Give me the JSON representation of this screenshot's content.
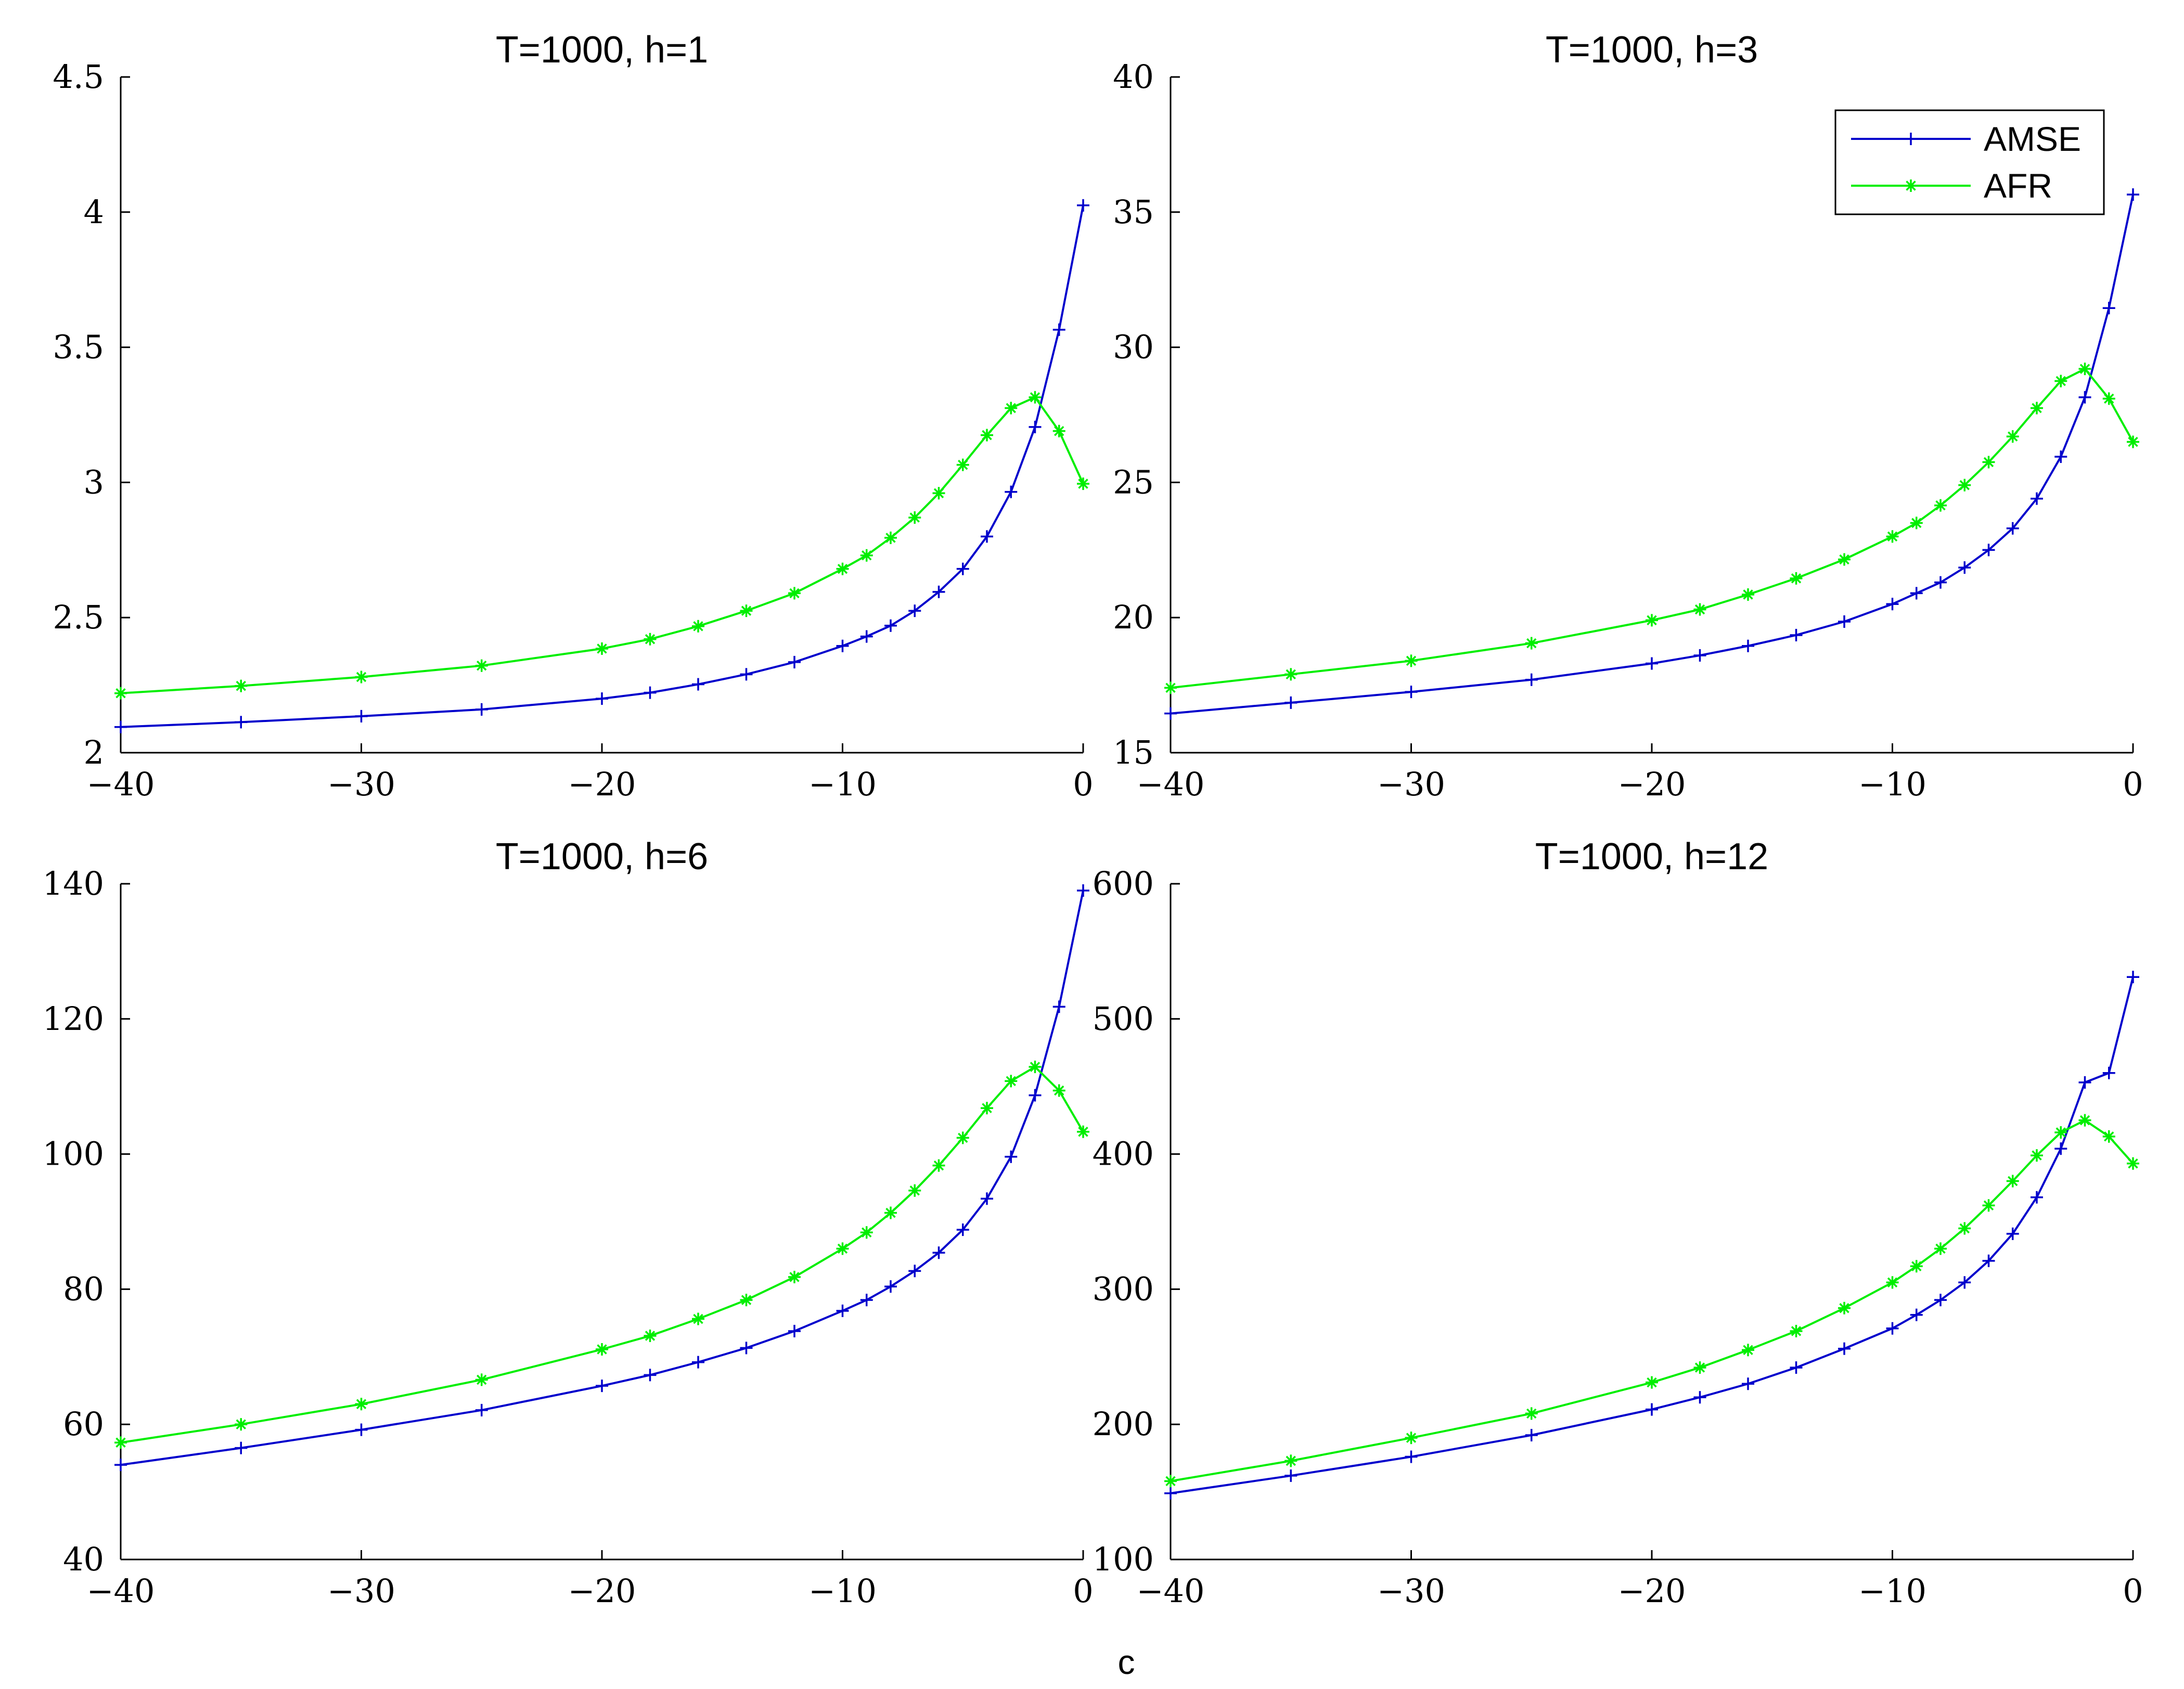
{
  "colors": {
    "amse": "#0000cc",
    "afr": "#00ee00",
    "axis": "#000000"
  },
  "xlabel": "c",
  "chart_data": [
    {
      "type": "line",
      "title": "T=1000, h=1",
      "xlabel": "",
      "ylabel": "",
      "xlim": [
        -40,
        0
      ],
      "ylim": [
        2,
        4.5
      ],
      "xticks": [
        -40,
        -30,
        -20,
        -10,
        0
      ],
      "xtick_labels": [
        "−40",
        "−30",
        "−20",
        "−10",
        "0"
      ],
      "yticks": [
        2,
        2.5,
        3,
        3.5,
        4,
        4.5
      ],
      "ytick_labels": [
        "2",
        "2.5",
        "3",
        "3.5",
        "4",
        "4.5"
      ],
      "grid": false,
      "legend": null,
      "series": [
        {
          "name": "AMSE",
          "marker": "+",
          "color": "#0000cc",
          "values": [
            [
              -40,
              2.095
            ],
            [
              -35,
              2.113
            ],
            [
              -30,
              2.135
            ],
            [
              -25,
              2.16
            ],
            [
              -20,
              2.2
            ],
            [
              -18,
              2.222
            ],
            [
              -16,
              2.253
            ],
            [
              -14,
              2.29
            ],
            [
              -12,
              2.335
            ],
            [
              -10,
              2.395
            ],
            [
              -9,
              2.43
            ],
            [
              -8,
              2.47
            ],
            [
              -7,
              2.525
            ],
            [
              -6,
              2.595
            ],
            [
              -5,
              2.68
            ],
            [
              -4,
              2.8
            ],
            [
              -3,
              2.965
            ],
            [
              -2,
              3.205
            ],
            [
              -1,
              3.565
            ],
            [
              0,
              4.025
            ]
          ]
        },
        {
          "name": "AFR",
          "marker": "*",
          "color": "#00ee00",
          "values": [
            [
              -40,
              2.22
            ],
            [
              -35,
              2.247
            ],
            [
              -30,
              2.28
            ],
            [
              -25,
              2.322
            ],
            [
              -20,
              2.385
            ],
            [
              -18,
              2.42
            ],
            [
              -16,
              2.468
            ],
            [
              -14,
              2.525
            ],
            [
              -12,
              2.59
            ],
            [
              -10,
              2.68
            ],
            [
              -9,
              2.73
            ],
            [
              -8,
              2.795
            ],
            [
              -7,
              2.87
            ],
            [
              -6,
              2.96
            ],
            [
              -5,
              3.065
            ],
            [
              -4,
              3.175
            ],
            [
              -3,
              3.275
            ],
            [
              -2,
              3.315
            ],
            [
              -1,
              3.19
            ],
            [
              0,
              2.995
            ]
          ]
        }
      ]
    },
    {
      "type": "line",
      "title": "T=1000, h=3",
      "xlabel": "",
      "ylabel": "",
      "xlim": [
        -40,
        0
      ],
      "ylim": [
        15,
        40
      ],
      "xticks": [
        -40,
        -30,
        -20,
        -10,
        0
      ],
      "xtick_labels": [
        "−40",
        "−30",
        "−20",
        "−10",
        "0"
      ],
      "yticks": [
        15,
        20,
        25,
        30,
        35,
        40
      ],
      "ytick_labels": [
        "15",
        "20",
        "25",
        "30",
        "35",
        "40"
      ],
      "grid": false,
      "legend": {
        "location": "top-right",
        "entries": [
          "AMSE",
          "AFR"
        ]
      },
      "series": [
        {
          "name": "AMSE",
          "marker": "+",
          "color": "#0000cc",
          "values": [
            [
              -40,
              16.45
            ],
            [
              -35,
              16.85
            ],
            [
              -30,
              17.25
            ],
            [
              -25,
              17.7
            ],
            [
              -20,
              18.3
            ],
            [
              -18,
              18.6
            ],
            [
              -16,
              18.95
            ],
            [
              -14,
              19.35
            ],
            [
              -12,
              19.85
            ],
            [
              -10,
              20.5
            ],
            [
              -9,
              20.9
            ],
            [
              -8,
              21.3
            ],
            [
              -7,
              21.85
            ],
            [
              -6,
              22.5
            ],
            [
              -5,
              23.3
            ],
            [
              -4,
              24.4
            ],
            [
              -3,
              25.95
            ],
            [
              -2,
              28.15
            ],
            [
              -1,
              31.45
            ],
            [
              0,
              35.65
            ]
          ]
        },
        {
          "name": "AFR",
          "marker": "*",
          "color": "#00ee00",
          "values": [
            [
              -40,
              17.4
            ],
            [
              -35,
              17.9
            ],
            [
              -30,
              18.4
            ],
            [
              -25,
              19.05
            ],
            [
              -20,
              19.9
            ],
            [
              -18,
              20.3
            ],
            [
              -16,
              20.85
            ],
            [
              -14,
              21.45
            ],
            [
              -12,
              22.15
            ],
            [
              -10,
              23.0
            ],
            [
              -9,
              23.5
            ],
            [
              -8,
              24.15
            ],
            [
              -7,
              24.9
            ],
            [
              -6,
              25.75
            ],
            [
              -5,
              26.7
            ],
            [
              -4,
              27.75
            ],
            [
              -3,
              28.75
            ],
            [
              -2,
              29.2
            ],
            [
              -1,
              28.1
            ],
            [
              0,
              26.5
            ]
          ]
        }
      ]
    },
    {
      "type": "line",
      "title": "T=1000, h=6",
      "xlabel": "",
      "ylabel": "",
      "xlim": [
        -40,
        0
      ],
      "ylim": [
        40,
        140
      ],
      "xticks": [
        -40,
        -30,
        -20,
        -10,
        0
      ],
      "xtick_labels": [
        "−40",
        "−30",
        "−20",
        "−10",
        "0"
      ],
      "yticks": [
        40,
        60,
        80,
        100,
        120,
        140
      ],
      "ytick_labels": [
        "40",
        "60",
        "80",
        "100",
        "120",
        "140"
      ],
      "grid": false,
      "legend": null,
      "series": [
        {
          "name": "AMSE",
          "marker": "+",
          "color": "#0000cc",
          "values": [
            [
              -40,
              54.0
            ],
            [
              -35,
              56.5
            ],
            [
              -30,
              59.2
            ],
            [
              -25,
              62.1
            ],
            [
              -20,
              65.7
            ],
            [
              -18,
              67.3
            ],
            [
              -16,
              69.2
            ],
            [
              -14,
              71.3
            ],
            [
              -12,
              73.8
            ],
            [
              -10,
              76.8
            ],
            [
              -9,
              78.4
            ],
            [
              -8,
              80.4
            ],
            [
              -7,
              82.7
            ],
            [
              -6,
              85.4
            ],
            [
              -5,
              88.8
            ],
            [
              -4,
              93.4
            ],
            [
              -3,
              99.6
            ],
            [
              -2,
              108.7
            ],
            [
              -1,
              121.8
            ],
            [
              0,
              139.0
            ]
          ]
        },
        {
          "name": "AFR",
          "marker": "*",
          "color": "#00ee00",
          "values": [
            [
              -40,
              57.3
            ],
            [
              -35,
              60.0
            ],
            [
              -30,
              63.0
            ],
            [
              -25,
              66.6
            ],
            [
              -20,
              71.1
            ],
            [
              -18,
              73.1
            ],
            [
              -16,
              75.6
            ],
            [
              -14,
              78.4
            ],
            [
              -12,
              81.8
            ],
            [
              -10,
              86.0
            ],
            [
              -9,
              88.4
            ],
            [
              -8,
              91.3
            ],
            [
              -7,
              94.6
            ],
            [
              -6,
              98.3
            ],
            [
              -5,
              102.4
            ],
            [
              -4,
              106.8
            ],
            [
              -3,
              110.8
            ],
            [
              -2,
              112.9
            ],
            [
              -1,
              109.4
            ],
            [
              0,
              103.3
            ]
          ]
        }
      ]
    },
    {
      "type": "line",
      "title": "T=1000, h=12",
      "xlabel": "",
      "ylabel": "",
      "xlim": [
        -40,
        0
      ],
      "ylim": [
        100,
        600
      ],
      "xticks": [
        -40,
        -30,
        -20,
        -10,
        0
      ],
      "xtick_labels": [
        "−40",
        "−30",
        "−20",
        "−10",
        "0"
      ],
      "yticks": [
        100,
        200,
        300,
        400,
        500,
        600
      ],
      "ytick_labels": [
        "100",
        "200",
        "300",
        "400",
        "500",
        "600"
      ],
      "grid": false,
      "legend": null,
      "series": [
        {
          "name": "AMSE",
          "marker": "+",
          "color": "#0000cc",
          "values": [
            [
              -40,
              149
            ],
            [
              -35,
              162
            ],
            [
              -30,
              176
            ],
            [
              -25,
              192
            ],
            [
              -20,
              211
            ],
            [
              -18,
              220
            ],
            [
              -16,
              230
            ],
            [
              -14,
              242
            ],
            [
              -12,
              256
            ],
            [
              -10,
              271
            ],
            [
              -9,
              281
            ],
            [
              -8,
              292
            ],
            [
              -7,
              305
            ],
            [
              -6,
              321
            ],
            [
              -5,
              341
            ],
            [
              -4,
              368
            ],
            [
              -3,
              404
            ],
            [
              -2,
              453
            ],
            [
              -1,
              460
            ],
            [
              0,
              531
            ]
          ]
        },
        {
          "name": "AFR",
          "marker": "*",
          "color": "#00ee00",
          "values": [
            [
              -40,
              158
            ],
            [
              -35,
              173
            ],
            [
              -30,
              190
            ],
            [
              -25,
              208
            ],
            [
              -20,
              231
            ],
            [
              -18,
              242
            ],
            [
              -16,
              255
            ],
            [
              -14,
              269
            ],
            [
              -12,
              286
            ],
            [
              -10,
              305
            ],
            [
              -9,
              317
            ],
            [
              -8,
              330
            ],
            [
              -7,
              345
            ],
            [
              -6,
              362
            ],
            [
              -5,
              380
            ],
            [
              -4,
              399
            ],
            [
              -3,
              416
            ],
            [
              -2,
              425
            ],
            [
              -1,
              413
            ],
            [
              0,
              393
            ]
          ]
        }
      ]
    }
  ]
}
